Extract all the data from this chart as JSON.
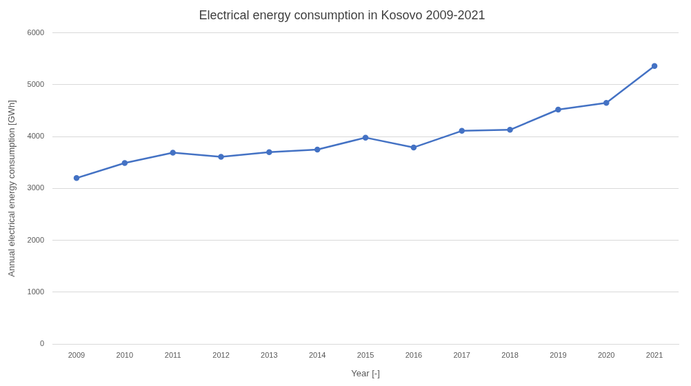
{
  "chart_data": {
    "type": "line",
    "title": "Electrical energy consumption in Kosovo 2009-2021",
    "xlabel": "Year [-]",
    "ylabel": "Annual electrical energy consumption [GWh]",
    "categories": [
      "2009",
      "2010",
      "2011",
      "2012",
      "2013",
      "2014",
      "2015",
      "2016",
      "2017",
      "2018",
      "2019",
      "2020",
      "2021"
    ],
    "series": [
      {
        "color": "#4472c4",
        "values": [
          3200,
          3490,
          3690,
          3610,
          3700,
          3750,
          3980,
          3790,
          4110,
          4130,
          4520,
          4650,
          5360
        ]
      }
    ],
    "ylim": [
      0,
      6000
    ],
    "yticks": [
      0,
      1000,
      2000,
      3000,
      4000,
      5000,
      6000
    ],
    "grid": "y",
    "legend": false,
    "marker": "circle",
    "line_style": "solid"
  }
}
